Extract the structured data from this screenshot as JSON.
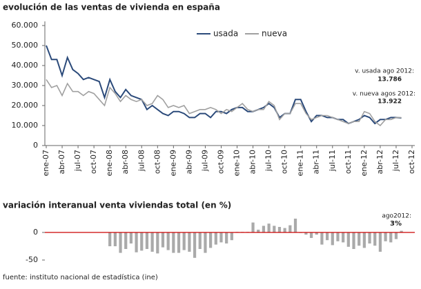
{
  "chart_data": [
    {
      "type": "line",
      "title": "evolución de las ventas de vivienda en españa",
      "categories": [
        "ene-07",
        null,
        null,
        "abr-07",
        null,
        null,
        "jul-07",
        null,
        null,
        "oct-07",
        null,
        null,
        "ene-08",
        null,
        null,
        "abr-08",
        null,
        null,
        "jul-08",
        null,
        null,
        "oct-08",
        null,
        null,
        "ene-09",
        null,
        null,
        "abr-09",
        null,
        null,
        "jul-09",
        null,
        null,
        "oct-09",
        null,
        null,
        "ene-10",
        null,
        null,
        "abr-10",
        null,
        null,
        "jul-10",
        null,
        null,
        "oct-10",
        null,
        null,
        "ene-11",
        null,
        null,
        "abr-11",
        null,
        null,
        "jul-11",
        null,
        null,
        "oct-11",
        null,
        null,
        "ene-12",
        null,
        null,
        "abr-12",
        null,
        null,
        "jul-12",
        null,
        null,
        "oct-12"
      ],
      "series": [
        {
          "name": "usada",
          "color": "#2b4a7a",
          "values": [
            50000,
            43000,
            43000,
            35000,
            44000,
            38000,
            36000,
            33000,
            34000,
            33000,
            32000,
            24000,
            33000,
            27000,
            24000,
            28000,
            25000,
            24000,
            23000,
            18000,
            20000,
            18000,
            16000,
            15000,
            17000,
            17000,
            16000,
            14000,
            14000,
            16000,
            16000,
            14000,
            17000,
            17000,
            16000,
            18000,
            19000,
            19000,
            17000,
            17000,
            18000,
            19000,
            21000,
            19000,
            14000,
            16000,
            16000,
            23000,
            23000,
            17000,
            12000,
            15000,
            15000,
            14000,
            14000,
            13000,
            13000,
            11000,
            12000,
            13000,
            15000,
            14000,
            11000,
            13000,
            13000,
            14000,
            14000,
            13786,
            null,
            null
          ]
        },
        {
          "name": "nueva",
          "color": "#a0a0a0",
          "values": [
            33000,
            29000,
            30000,
            25000,
            31000,
            27000,
            27000,
            25000,
            27000,
            26000,
            23000,
            20000,
            29000,
            26000,
            22000,
            25000,
            23000,
            22000,
            23000,
            20000,
            21000,
            25000,
            23000,
            19000,
            20000,
            19000,
            20000,
            16000,
            17000,
            18000,
            18000,
            19000,
            18000,
            16000,
            18000,
            17000,
            19000,
            21000,
            18000,
            17000,
            18000,
            18000,
            22000,
            20000,
            13000,
            16000,
            16000,
            21000,
            21000,
            16000,
            13000,
            14000,
            15000,
            15000,
            14000,
            13000,
            12000,
            11000,
            12000,
            12000,
            17000,
            16000,
            12000,
            10000,
            13000,
            13000,
            14000,
            13922,
            null,
            null
          ]
        }
      ],
      "ylim": [
        0,
        60000
      ],
      "yticks": [
        0,
        {
          "value": 10000,
          "label": "10.000"
        },
        {
          "value": 20000,
          "label": "20.000"
        },
        {
          "value": 30000,
          "label": "30.000"
        },
        {
          "value": 40000,
          "label": "40.000"
        },
        {
          "value": 50000,
          "label": "50.000"
        },
        {
          "value": 60000,
          "label": "60.000"
        }
      ],
      "legend": "top",
      "annotations": [
        "v. usada ago 2012:",
        "13.786",
        "v. nueva agos 2012:",
        "13.922"
      ]
    },
    {
      "type": "bar",
      "title": "variación interanual venta viviendas total (en %)",
      "categories": [
        null,
        null,
        null,
        null,
        null,
        null,
        null,
        null,
        null,
        null,
        null,
        null,
        null,
        null,
        null,
        null,
        null,
        null,
        null,
        null,
        null,
        null,
        null,
        null,
        null,
        null,
        null,
        null,
        null,
        null,
        null,
        null,
        null,
        null,
        null,
        null,
        null,
        null,
        null,
        null,
        null,
        null,
        null,
        null,
        null,
        null,
        null,
        null,
        null,
        null,
        null,
        null,
        null,
        null,
        null,
        null,
        null,
        null,
        null,
        null,
        null,
        null,
        null,
        null,
        null,
        null,
        null,
        null,
        null,
        null
      ],
      "values": [
        null,
        null,
        null,
        null,
        null,
        null,
        null,
        null,
        null,
        null,
        null,
        null,
        -25,
        -25,
        -37,
        -30,
        -20,
        -36,
        -33,
        -30,
        -35,
        -38,
        -27,
        -32,
        -37,
        -37,
        -32,
        -35,
        -46,
        -30,
        -37,
        -28,
        -22,
        -18,
        -20,
        -14,
        1,
        1,
        1,
        18,
        5,
        12,
        16,
        12,
        10,
        8,
        13,
        25,
        -1,
        -4,
        -10,
        -4,
        -22,
        -14,
        -23,
        -16,
        -18,
        -26,
        -30,
        -24,
        -28,
        -20,
        -24,
        -35,
        -16,
        -18,
        -12,
        3,
        null,
        null
      ],
      "color": "#aaaaaa",
      "zero_line_color": "#cc0000",
      "ylim": [
        -55,
        30
      ],
      "yticks": [
        -50,
        0
      ],
      "annotations": [
        "ago2012:",
        "3%"
      ]
    }
  ],
  "source": "fuente: instituto nacional de estadística (ine)"
}
